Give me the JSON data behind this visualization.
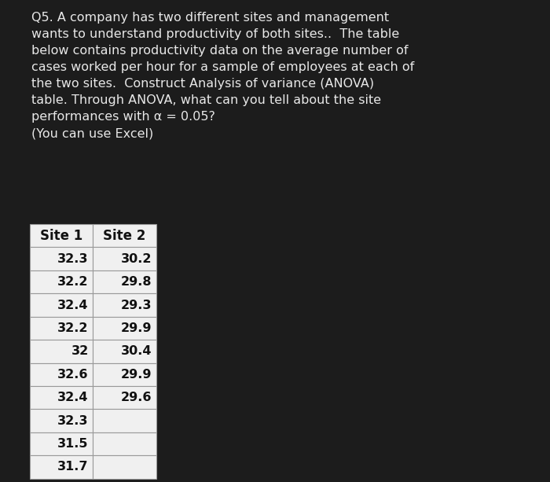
{
  "background_color": "#1c1c1c",
  "text_color": "#e8e8e8",
  "table_text_color": "#111111",
  "paragraph": "Q5. A company has two different sites and management\nwants to understand productivity of both sites..  The table\nbelow contains productivity data on the average number of\ncases worked per hour for a sample of employees at each of\nthe two sites.  Construct Analysis of variance (ANOVA)\ntable. Through ANOVA, what can you tell about the site\nperformances with α = 0.05?\n(You can use Excel)",
  "col1_header": "Site 1",
  "col2_header": "Site 2",
  "site1": [
    "32.3",
    "32.2",
    "32.4",
    "32.2",
    "32",
    "32.6",
    "32.4",
    "32.3",
    "31.5",
    "31.7"
  ],
  "site2": [
    "30.2",
    "29.8",
    "29.3",
    "29.9",
    "30.4",
    "29.9",
    "29.6",
    "",
    "",
    ""
  ],
  "font_size_text": 11.5,
  "font_size_table": 11.5,
  "table_bg": "#f0f0f0",
  "table_line_color": "#999999",
  "header_font_size": 12
}
